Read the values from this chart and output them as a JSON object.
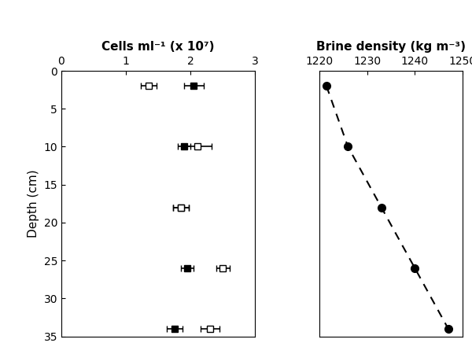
{
  "left_panel": {
    "xlabel": "Cells ml⁻¹ (x 10⁷)",
    "ylabel": "Depth (cm)",
    "xlim": [
      0,
      3
    ],
    "ylim": [
      35,
      0
    ],
    "xticks": [
      0,
      1,
      2,
      3
    ],
    "yticks": [
      0,
      5,
      10,
      15,
      20,
      25,
      30,
      35
    ],
    "filled_squares": {
      "depths": [
        2,
        10,
        18,
        26,
        34
      ],
      "values": [
        2.05,
        1.9,
        1.85,
        1.95,
        1.75
      ],
      "xerr": [
        0.15,
        0.1,
        0.12,
        0.1,
        0.12
      ]
    },
    "open_squares": {
      "depths": [
        2,
        10,
        18,
        26,
        34
      ],
      "values": [
        1.35,
        2.1,
        1.85,
        2.5,
        2.3
      ],
      "xerr": [
        0.12,
        0.22,
        0.12,
        0.1,
        0.15
      ]
    }
  },
  "right_panel": {
    "xlabel": "Brine density (kg m⁻³)",
    "xlim": [
      1220,
      1250
    ],
    "ylim": [
      35,
      0
    ],
    "xticks": [
      1220,
      1230,
      1240,
      1250
    ],
    "density_depths": [
      2,
      10,
      18,
      26,
      34
    ],
    "density_values": [
      1221.5,
      1226,
      1233,
      1240,
      1247
    ]
  }
}
